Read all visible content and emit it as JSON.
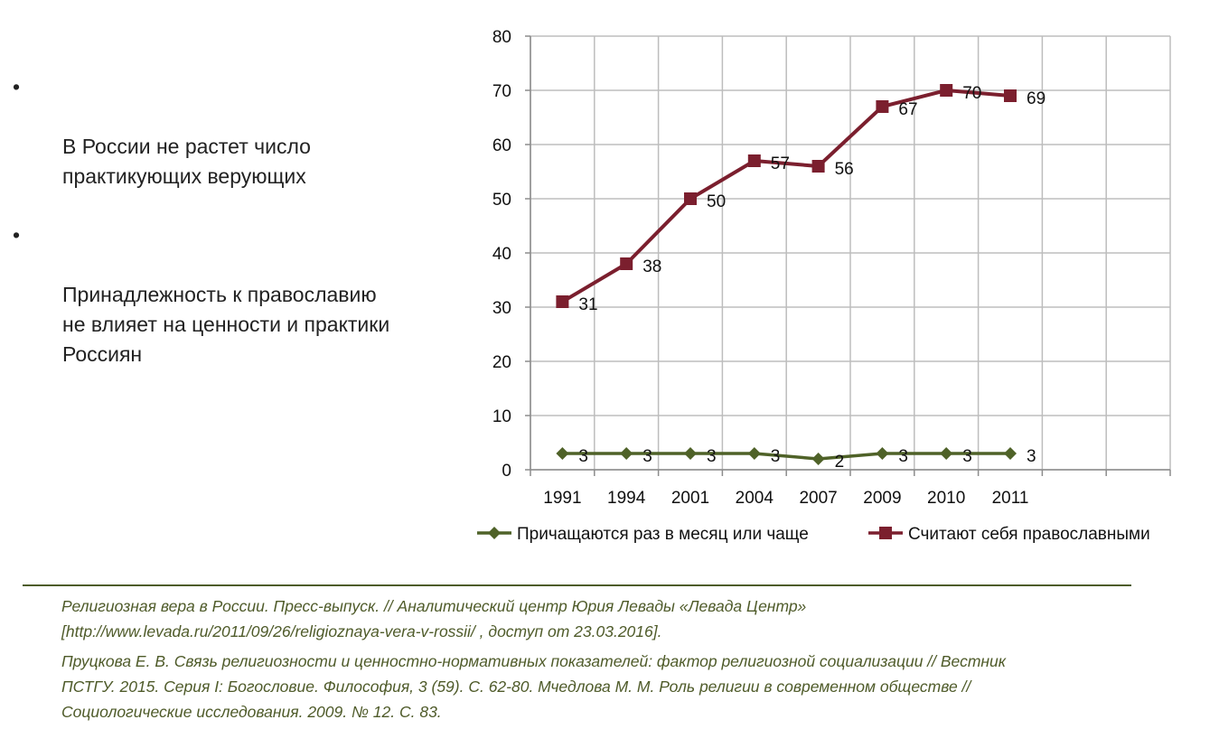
{
  "bullets": [
    {
      "marker": "•",
      "text": "В России не растет число\nпрактикующих верующих"
    },
    {
      "marker": "•",
      "text": "Принадлежность к православию\nне влияет на ценности и практики\nРоссиян"
    }
  ],
  "chart_data": {
    "type": "line",
    "title": "",
    "xlabel": "",
    "ylabel": "",
    "categories": [
      "1991",
      "1994",
      "2001",
      "2004",
      "2007",
      "2009",
      "2010",
      "2011"
    ],
    "y_ticks": [
      "0",
      "10",
      "20",
      "30",
      "40",
      "50",
      "60",
      "70",
      "80"
    ],
    "ylim": [
      0,
      80
    ],
    "grid": true,
    "legend_position": "bottom",
    "series": [
      {
        "name": "Причащаются раз в месяц или чаще",
        "values": [
          3,
          3,
          3,
          3,
          2,
          3,
          3,
          3
        ],
        "labels": [
          "3",
          "3",
          "3",
          "3",
          "2",
          "3",
          "3",
          "3"
        ],
        "color": "#4f6228",
        "marker": "diamond"
      },
      {
        "name": "Считают себя православными",
        "values": [
          31,
          38,
          50,
          57,
          56,
          67,
          70,
          69
        ],
        "labels": [
          "31",
          "38",
          "50",
          "57",
          "56",
          "67",
          "70",
          "69"
        ],
        "color": "#7b1f2e",
        "marker": "square"
      }
    ]
  },
  "references": [
    "Религиозная вера в России. Пресс-выпуск. // Аналитический центр Юрия Левады «Левада Центр»\n[http://www.levada.ru/2011/09/26/religioznaya-vera-v-rossii/ , доступ от 23.03.2016].",
    "Пруцкова Е. В. Связь религиозности и ценностно-нормативных показателей: фактор религиозной социализации // Вестник\nПСТГУ. 2015. Серия I: Богословие. Философия, 3 (59). С. 62-80. Мчедлова М. М. Роль религии в современном обществе //\nСоциологические исследования. 2009. № 12. С. 83."
  ]
}
